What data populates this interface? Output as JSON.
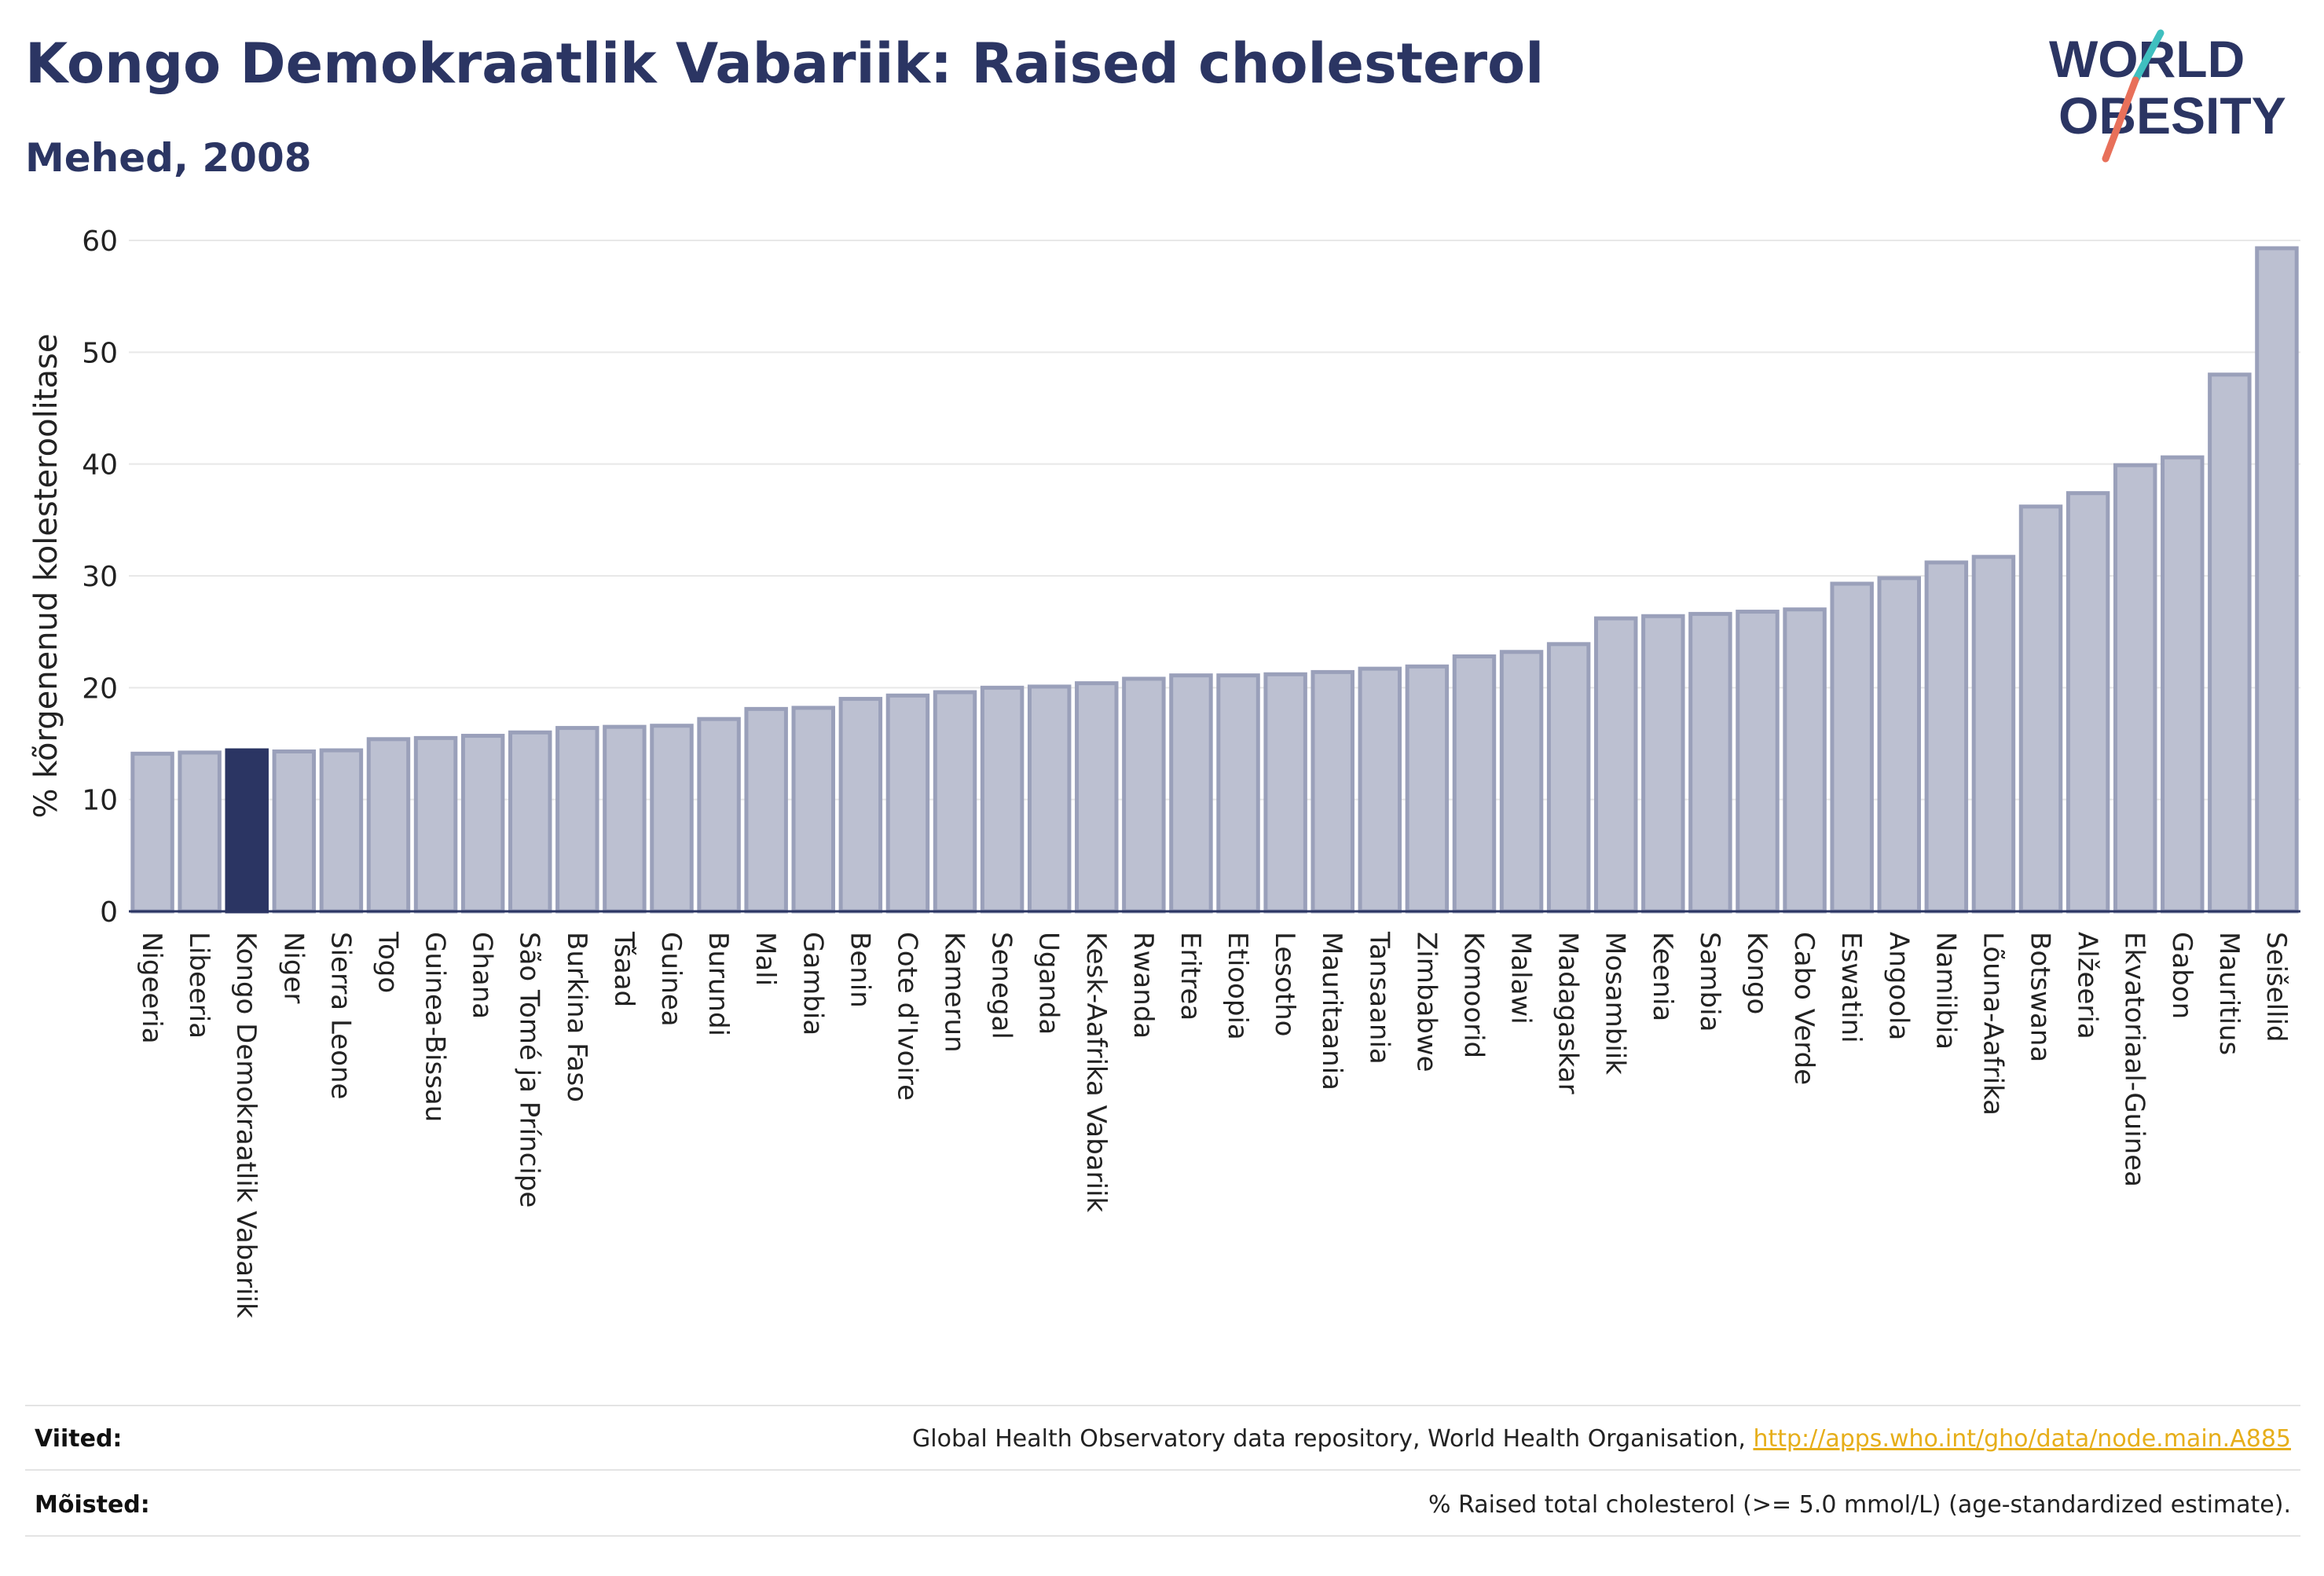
{
  "header": {
    "title": "Kongo Demokraatlik Vabariik: Raised cholesterol",
    "subtitle": "Mehed, 2008"
  },
  "logo": {
    "line1": "WORLD",
    "line2": "OBESITY",
    "accent_colors": [
      "#3fbfbf",
      "#e8705a"
    ],
    "text_color": "#2b3563"
  },
  "colors": {
    "bar_fill": "#bcc0d1",
    "bar_stroke": "#9aa0ba",
    "highlight": "#2b3563",
    "grid": "#e8e8e8",
    "axis": "#2b3563"
  },
  "chart_data": {
    "type": "bar",
    "ylabel": "% kõrgenenud kolesteroolitase",
    "ylim": [
      0,
      60
    ],
    "yticks": [
      0,
      10,
      20,
      30,
      40,
      50,
      60
    ],
    "highlight": "Kongo Demokraatlik Vabariik",
    "categories": [
      "Nigeeria",
      "Libeeria",
      "Kongo Demokraatlik Vabariik",
      "Niger",
      "Sierra Leone",
      "Togo",
      "Guinea-Bissau",
      "Ghana",
      "São Tomé ja Príncipe",
      "Burkina Faso",
      "Tšaad",
      "Guinea",
      "Burundi",
      "Mali",
      "Gambia",
      "Benin",
      "Cote d'Ivoire",
      "Kamerun",
      "Senegal",
      "Uganda",
      "Kesk-Aafrika Vabariik",
      "Rwanda",
      "Eritrea",
      "Etioopia",
      "Lesotho",
      "Mauritaania",
      "Tansaania",
      "Zimbabwe",
      "Komoorid",
      "Malawi",
      "Madagaskar",
      "Mosambiik",
      "Keenia",
      "Sambia",
      "Kongo",
      "Cabo Verde",
      "Eswatini",
      "Angoola",
      "Namiibia",
      "Lõuna-Aafrika",
      "Botswana",
      "Alžeeria",
      "Ekvatoriaal-Guinea",
      "Gabon",
      "Mauritius",
      "Seišellid"
    ],
    "values": [
      14.1,
      14.2,
      14.4,
      14.3,
      14.4,
      15.4,
      15.5,
      15.7,
      16.0,
      16.4,
      16.5,
      16.6,
      17.2,
      18.1,
      18.2,
      19.0,
      19.3,
      19.6,
      20.0,
      20.1,
      20.4,
      20.8,
      21.1,
      21.1,
      21.2,
      21.4,
      21.7,
      21.9,
      22.8,
      23.2,
      23.9,
      26.2,
      26.4,
      26.6,
      26.8,
      27.0,
      29.3,
      29.8,
      31.2,
      31.7,
      36.2,
      37.4,
      39.9,
      40.6,
      48.0,
      59.3
    ]
  },
  "footer": {
    "sources_label": "Viited:",
    "sources_text": "Global Health Observatory data repository, World Health Organisation, ",
    "sources_link": "http://apps.who.int/gho/data/node.main.A885",
    "definitions_label": "Mõisted:",
    "definitions_text": "% Raised total cholesterol (>= 5.0 mmol/L) (age-standardized estimate)."
  }
}
